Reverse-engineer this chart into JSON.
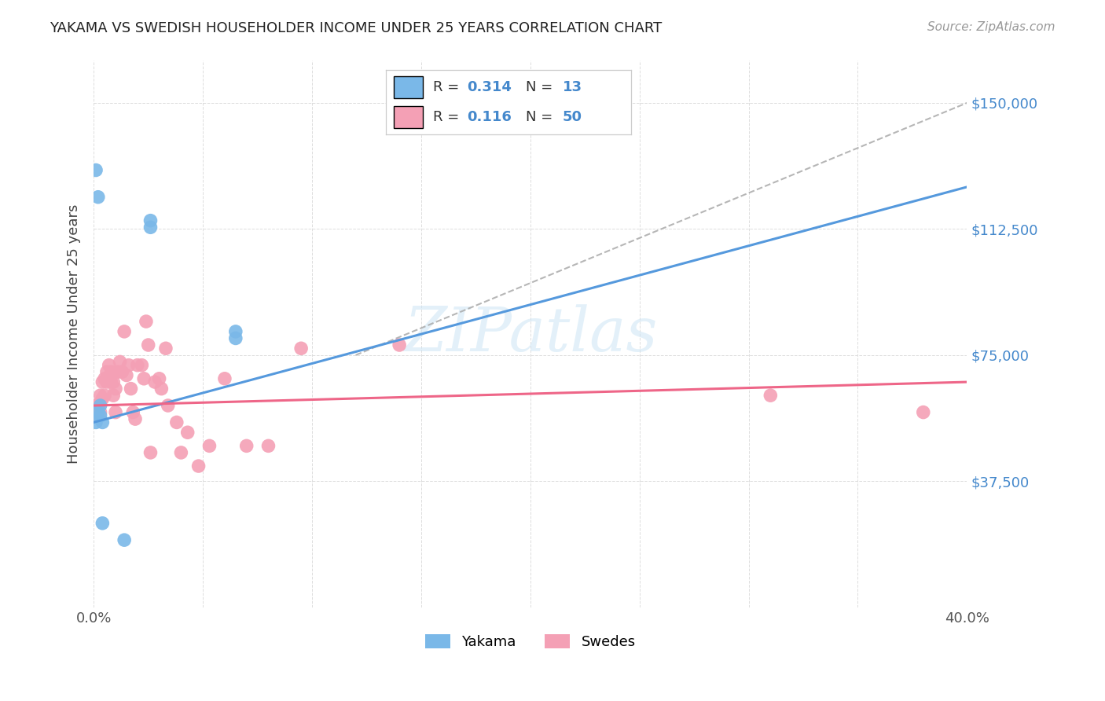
{
  "title": "YAKAMA VS SWEDISH HOUSEHOLDER INCOME UNDER 25 YEARS CORRELATION CHART",
  "source": "Source: ZipAtlas.com",
  "ylabel": "Householder Income Under 25 years",
  "xlim": [
    0.0,
    0.4
  ],
  "ylim": [
    0,
    162500
  ],
  "ytick_pos": [
    0,
    37500,
    75000,
    112500,
    150000
  ],
  "ytick_labels": [
    "",
    "$37,500",
    "$75,000",
    "$112,500",
    "$150,000"
  ],
  "xtick_positions": [
    0.0,
    0.05,
    0.1,
    0.15,
    0.2,
    0.25,
    0.3,
    0.35,
    0.4
  ],
  "xtick_labels": [
    "0.0%",
    "",
    "",
    "",
    "",
    "",
    "",
    "",
    "40.0%"
  ],
  "watermark": "ZIPatlas",
  "yakama_color": "#7ab8e8",
  "swedes_color": "#f4a0b5",
  "trendline_yakama_color": "#5599dd",
  "trendline_swedes_color": "#ee6688",
  "trendline_dashed_color": "#aaaaaa",
  "R_yakama": 0.314,
  "N_yakama": 13,
  "R_swedes": 0.116,
  "N_swedes": 50,
  "legend_R_N_color": "#4488cc",
  "background_color": "#ffffff",
  "grid_color": "#dddddd",
  "title_color": "#222222",
  "source_color": "#999999",
  "axis_label_color": "#444444",
  "tick_label_color": "#555555",
  "right_tick_color": "#4488cc",
  "yakama_x": [
    0.001,
    0.002,
    0.002,
    0.003,
    0.003,
    0.004,
    0.004,
    0.026,
    0.026,
    0.065,
    0.065,
    0.001,
    0.014
  ],
  "yakama_y": [
    130000,
    122000,
    58000,
    60000,
    57000,
    55000,
    25000,
    115000,
    113000,
    82000,
    80000,
    55000,
    20000
  ],
  "swedes_x": [
    0.001,
    0.001,
    0.002,
    0.003,
    0.003,
    0.004,
    0.004,
    0.005,
    0.005,
    0.006,
    0.006,
    0.007,
    0.008,
    0.008,
    0.009,
    0.009,
    0.01,
    0.01,
    0.011,
    0.012,
    0.013,
    0.014,
    0.015,
    0.016,
    0.017,
    0.018,
    0.019,
    0.02,
    0.022,
    0.023,
    0.024,
    0.025,
    0.026,
    0.028,
    0.03,
    0.031,
    0.033,
    0.034,
    0.038,
    0.04,
    0.043,
    0.048,
    0.053,
    0.06,
    0.07,
    0.08,
    0.095,
    0.14,
    0.31,
    0.38
  ],
  "swedes_y": [
    60000,
    57000,
    60000,
    63000,
    58000,
    67000,
    62000,
    68000,
    63000,
    70000,
    67000,
    72000,
    70000,
    67000,
    67000,
    63000,
    65000,
    58000,
    70000,
    73000,
    70000,
    82000,
    69000,
    72000,
    65000,
    58000,
    56000,
    72000,
    72000,
    68000,
    85000,
    78000,
    46000,
    67000,
    68000,
    65000,
    77000,
    60000,
    55000,
    46000,
    52000,
    42000,
    48000,
    68000,
    48000,
    48000,
    77000,
    78000,
    63000,
    58000
  ],
  "trendline_yakama_x0": 0.0,
  "trendline_yakama_y0": 55000,
  "trendline_yakama_x1": 0.2,
  "trendline_yakama_y1": 90000,
  "trendline_swedes_x0": 0.0,
  "trendline_swedes_y0": 60000,
  "trendline_swedes_x1": 0.4,
  "trendline_swedes_y1": 67000,
  "trendline_dashed_x0": 0.12,
  "trendline_dashed_y0": 75000,
  "trendline_dashed_x1": 0.4,
  "trendline_dashed_y1": 150000
}
